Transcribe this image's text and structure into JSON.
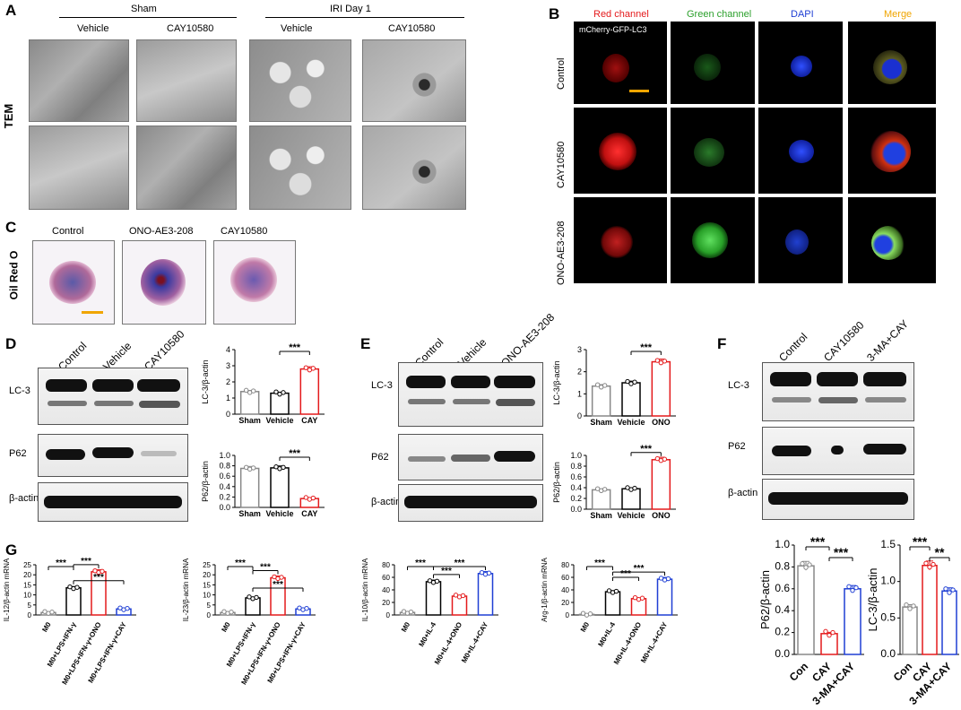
{
  "panels": {
    "A": "A",
    "B": "B",
    "C": "C",
    "D": "D",
    "E": "E",
    "F": "F",
    "G": "G"
  },
  "panelA": {
    "group1": "Sham",
    "group2": "IRI Day 1",
    "col1": "Vehicle",
    "col2": "CAY10580",
    "col3": "Vehicle",
    "col4": "CAY10580",
    "row_label": "TEM"
  },
  "panelB": {
    "ch1": "Red channel",
    "ch2": "Green channel",
    "ch3": "DAPI",
    "ch4": "Merge",
    "construct": "mCherry-GFP-LC3",
    "rows": [
      "Control",
      "CAY10580",
      "ONO-AE3-208"
    ],
    "colors": {
      "red": "#e41a1c",
      "green": "#2ca02c",
      "blue": "#1f3fd4",
      "merge": "#f0a500",
      "scale": "#f0a500"
    }
  },
  "panelC": {
    "cols": [
      "Control",
      "ONO-AE3-208",
      "CAY10580"
    ],
    "row_label": "Oil Red O"
  },
  "panelD": {
    "lanes": [
      "Control",
      "Vehicle",
      "CAY10580"
    ],
    "rows": [
      "LC-3",
      "P62",
      "β-actin"
    ]
  },
  "panelE": {
    "lanes": [
      "Control",
      "Vehicle",
      "ONO-AE3-208"
    ],
    "rows": [
      "LC-3",
      "P62",
      "β-actin"
    ]
  },
  "panelF": {
    "lanes": [
      "Control",
      "CAY10580",
      "3-MA+CAY"
    ],
    "rows": [
      "LC-3",
      "P62",
      "β-actin"
    ]
  },
  "chart_data": [
    {
      "id": "D1",
      "type": "bar",
      "categories": [
        "Sham",
        "Vehicle",
        "CAY"
      ],
      "values": [
        1.4,
        1.3,
        2.8
      ],
      "ylabel": "LC-3/β-actin",
      "yticks": [
        0,
        1,
        2,
        3,
        4
      ],
      "ylim": [
        0,
        4
      ],
      "sig": [
        {
          "from": 1,
          "to": 2,
          "label": "***"
        }
      ],
      "colors": [
        "#888888",
        "#000000",
        "#e41a1c"
      ]
    },
    {
      "id": "D2",
      "type": "bar",
      "categories": [
        "Sham",
        "Vehicle",
        "CAY"
      ],
      "values": [
        0.75,
        0.76,
        0.17
      ],
      "ylabel": "P62/β-actin",
      "yticks": [
        0.0,
        0.2,
        0.4,
        0.6,
        0.8,
        1.0
      ],
      "ylim": [
        0,
        1.0
      ],
      "sig": [
        {
          "from": 1,
          "to": 2,
          "label": "***"
        }
      ],
      "colors": [
        "#888888",
        "#000000",
        "#e41a1c"
      ]
    },
    {
      "id": "E1",
      "type": "bar",
      "categories": [
        "Sham",
        "Vehicle",
        "ONO"
      ],
      "values": [
        1.35,
        1.5,
        2.45
      ],
      "ylabel": "LC-3/β-actin",
      "yticks": [
        0,
        1,
        2,
        3
      ],
      "ylim": [
        0,
        3
      ],
      "sig": [
        {
          "from": 1,
          "to": 2,
          "label": "***"
        }
      ],
      "colors": [
        "#888888",
        "#000000",
        "#e41a1c"
      ]
    },
    {
      "id": "E2",
      "type": "bar",
      "categories": [
        "Sham",
        "Vehicle",
        "ONO"
      ],
      "values": [
        0.36,
        0.38,
        0.92
      ],
      "ylabel": "P62/β-actin",
      "yticks": [
        0.0,
        0.2,
        0.4,
        0.6,
        0.8,
        1.0
      ],
      "ylim": [
        0,
        1.0
      ],
      "sig": [
        {
          "from": 1,
          "to": 2,
          "label": "***"
        }
      ],
      "colors": [
        "#888888",
        "#000000",
        "#e41a1c"
      ]
    },
    {
      "id": "F1",
      "type": "bar",
      "categories": [
        "Con",
        "CAY",
        "3-MA+CAY"
      ],
      "values": [
        0.81,
        0.19,
        0.6
      ],
      "ylabel": "P62/β-actin",
      "yticks": [
        0.0,
        0.2,
        0.4,
        0.6,
        0.8,
        1.0
      ],
      "ylim": [
        0,
        1.0
      ],
      "sig": [
        {
          "from": 0,
          "to": 1,
          "label": "***"
        },
        {
          "from": 1,
          "to": 2,
          "label": "***"
        }
      ],
      "colors": [
        "#888888",
        "#e41a1c",
        "#1f3fd4"
      ]
    },
    {
      "id": "F2",
      "type": "bar",
      "categories": [
        "Con",
        "CAY",
        "3-MA+CAY"
      ],
      "values": [
        0.65,
        1.22,
        0.87
      ],
      "ylabel": "LC-3/β-actin",
      "yticks": [
        0.0,
        0.5,
        1.0,
        1.5
      ],
      "ylim": [
        0,
        1.5
      ],
      "sig": [
        {
          "from": 0,
          "to": 1,
          "label": "***"
        },
        {
          "from": 1,
          "to": 2,
          "label": "**"
        }
      ],
      "colors": [
        "#888888",
        "#e41a1c",
        "#1f3fd4"
      ]
    },
    {
      "id": "G1",
      "type": "bar",
      "categories": [
        "M0",
        "M0+LPS+IFN-γ",
        "M0+LPS+IFN-γ+ONO",
        "M0+LPS+IFN-γ+CAY"
      ],
      "values": [
        1.2,
        13.5,
        21.5,
        3.0
      ],
      "ylabel": "IL-12/β-actin mRNA",
      "yticks": [
        0,
        5,
        10,
        15,
        20,
        25
      ],
      "ylim": [
        0,
        25
      ],
      "sig": [
        {
          "from": 0,
          "to": 1,
          "label": "***"
        },
        {
          "from": 1,
          "to": 2,
          "label": "***"
        },
        {
          "from": 1,
          "to": 3,
          "label": "***"
        }
      ],
      "colors": [
        "#888888",
        "#000000",
        "#e41a1c",
        "#1f3fd4"
      ]
    },
    {
      "id": "G2",
      "type": "bar",
      "categories": [
        "M0",
        "M0+LPS+IFN-γ",
        "M0+LPS+IFN-γ+ONO",
        "M0+LPS+IFN-γ+CAY"
      ],
      "values": [
        1.2,
        8.5,
        18.5,
        3.0
      ],
      "ylabel": "IL-23/β-actin mRNA",
      "yticks": [
        0,
        5,
        10,
        15,
        20,
        25
      ],
      "ylim": [
        0,
        25
      ],
      "sig": [
        {
          "from": 0,
          "to": 1,
          "label": "***"
        },
        {
          "from": 1,
          "to": 2,
          "label": "***"
        },
        {
          "from": 1,
          "to": 3,
          "label": "***"
        }
      ],
      "colors": [
        "#888888",
        "#000000",
        "#e41a1c",
        "#1f3fd4"
      ]
    },
    {
      "id": "G3",
      "type": "bar",
      "categories": [
        "M0",
        "M0+IL-4",
        "M0+IL-4+ONO",
        "M0+IL-4+CAY"
      ],
      "values": [
        4,
        53,
        30,
        66
      ],
      "ylabel": "IL-10/β-actin mRNA",
      "yticks": [
        0,
        20,
        40,
        60,
        80
      ],
      "ylim": [
        0,
        80
      ],
      "sig": [
        {
          "from": 0,
          "to": 1,
          "label": "***"
        },
        {
          "from": 1,
          "to": 2,
          "label": "***"
        },
        {
          "from": 1,
          "to": 3,
          "label": "***"
        }
      ],
      "colors": [
        "#888888",
        "#000000",
        "#e41a1c",
        "#1f3fd4"
      ]
    },
    {
      "id": "G4",
      "type": "bar",
      "categories": [
        "M0",
        "M0+IL-4",
        "M0+IL-4+ONO",
        "M0+IL-4+CAY"
      ],
      "values": [
        1,
        37,
        26,
        57
      ],
      "ylabel": "Arg-1/β-actin mRNA",
      "yticks": [
        0,
        20,
        40,
        60,
        80
      ],
      "ylim": [
        0,
        80
      ],
      "sig": [
        {
          "from": 0,
          "to": 1,
          "label": "***"
        },
        {
          "from": 1,
          "to": 2,
          "label": "***"
        },
        {
          "from": 1,
          "to": 3,
          "label": "***"
        }
      ],
      "colors": [
        "#888888",
        "#000000",
        "#e41a1c",
        "#1f3fd4"
      ]
    }
  ]
}
